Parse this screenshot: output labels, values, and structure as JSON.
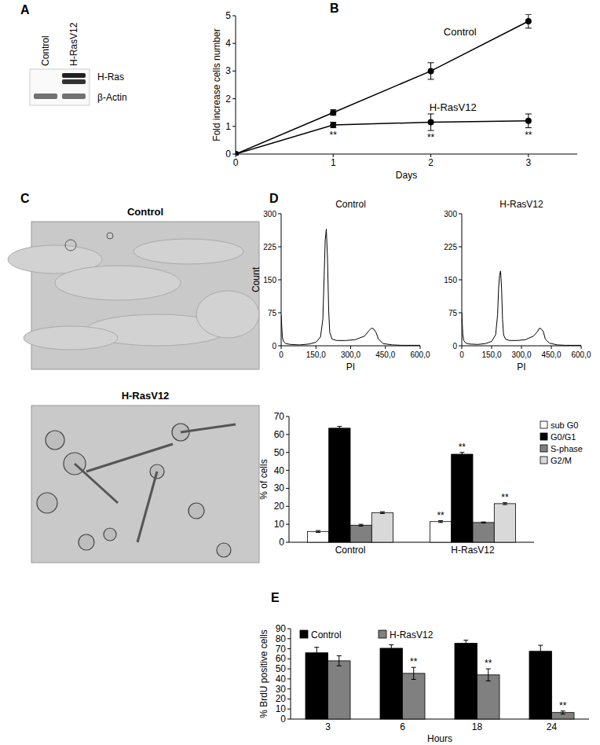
{
  "blot": {
    "panel": "A",
    "lanes": [
      "Control",
      "H-RasV12"
    ],
    "rows": [
      {
        "label": "H-Ras",
        "intensity": [
          0,
          1
        ]
      },
      {
        "label": "β-Actin",
        "intensity": [
          0.75,
          0.75
        ]
      }
    ]
  },
  "micrographs": {
    "panel": "C",
    "images": [
      {
        "title": "Control"
      },
      {
        "title": "H-RasV12"
      }
    ]
  },
  "chart_data": [
    {
      "panel": "B",
      "type": "line",
      "xlabel": "Days",
      "ylabel": "Fold increase cells number",
      "x": [
        0,
        1,
        2,
        3
      ],
      "xlim": [
        0,
        3.5
      ],
      "xticks": [
        0,
        1,
        2,
        3
      ],
      "ylim": [
        0,
        5
      ],
      "yticks": [
        0,
        1,
        2,
        3,
        4,
        5
      ],
      "grid": false,
      "series": [
        {
          "name": "Control",
          "color": "#000000",
          "marker": "circle",
          "values": [
            0,
            1.5,
            3.0,
            4.8
          ],
          "errors": [
            null,
            0.1,
            0.3,
            0.25
          ]
        },
        {
          "name": "H-RasV12",
          "color": "#000000",
          "marker": "circle",
          "values": [
            0,
            1.05,
            1.15,
            1.2
          ],
          "errors": [
            null,
            0.1,
            0.3,
            0.25
          ],
          "significance": [
            null,
            "**",
            "**",
            "**"
          ]
        }
      ]
    },
    {
      "panel": "D",
      "type": "line",
      "title": "Control",
      "xlabel": "PI",
      "ylabel": "Count",
      "x": [
        0,
        5,
        10,
        20,
        40,
        80,
        120,
        150,
        170,
        180,
        185,
        190,
        195,
        200,
        205,
        210,
        220,
        240,
        280,
        320,
        360,
        380,
        390,
        400,
        410,
        420,
        440,
        480,
        520,
        560,
        600
      ],
      "xlim": [
        0,
        600
      ],
      "xticks": [
        0,
        {
          "value": 150,
          "label": "150,0"
        },
        {
          "value": 300,
          "label": "300,0"
        },
        {
          "value": 450,
          "label": "450,0"
        },
        {
          "value": 600,
          "label": "600,0"
        }
      ],
      "ylim": [
        0,
        300
      ],
      "yticks": [
        0,
        75,
        150,
        225,
        300
      ],
      "grid": false,
      "series": [
        {
          "color": "#000000",
          "values": [
            70,
            20,
            10,
            5,
            3,
            2,
            4,
            8,
            20,
            60,
            150,
            240,
            265,
            200,
            80,
            30,
            15,
            12,
            12,
            14,
            22,
            35,
            40,
            38,
            30,
            15,
            5,
            2,
            1,
            1,
            1
          ]
        }
      ]
    },
    {
      "type": "line",
      "title": "H-RasV12",
      "x": [
        0,
        5,
        10,
        20,
        40,
        80,
        120,
        150,
        170,
        180,
        185,
        190,
        195,
        200,
        205,
        210,
        220,
        240,
        280,
        320,
        360,
        380,
        390,
        400,
        410,
        420,
        440,
        480,
        520,
        560,
        600
      ],
      "xlabel": "PI",
      "xlim": [
        0,
        600
      ],
      "xticks": [
        0,
        {
          "value": 150,
          "label": "150,0"
        },
        {
          "value": 300,
          "label": "300,0"
        },
        {
          "value": 450,
          "label": "450,0"
        },
        {
          "value": 600,
          "label": "600,0"
        }
      ],
      "ylim": [
        0,
        300
      ],
      "yticks": [
        0,
        75,
        150,
        225,
        300
      ],
      "grid": false,
      "series": [
        {
          "color": "#000000",
          "values": [
            75,
            25,
            12,
            6,
            4,
            3,
            5,
            10,
            25,
            70,
            130,
            160,
            170,
            130,
            60,
            25,
            15,
            12,
            12,
            14,
            22,
            32,
            40,
            38,
            32,
            15,
            6,
            2,
            1,
            1,
            1
          ]
        }
      ]
    },
    {
      "type": "bar",
      "ylabel": "% of cells",
      "categories": [
        "Control",
        "H-RasV12"
      ],
      "ylim": [
        0,
        70
      ],
      "yticks": [
        0,
        10,
        20,
        30,
        40,
        50,
        60,
        70
      ],
      "grid": false,
      "legend": "upper right",
      "series": [
        {
          "name": "sub G0",
          "color": "#ffffff",
          "values": [
            6,
            11.5
          ],
          "errors": [
            0.5,
            0.5
          ],
          "significance": [
            null,
            "**"
          ]
        },
        {
          "name": "G0/G1",
          "color": "#000000",
          "values": [
            63.5,
            49
          ],
          "errors": [
            1,
            1
          ],
          "significance": [
            null,
            "**"
          ]
        },
        {
          "name": "S-phase",
          "color": "#808080",
          "values": [
            9.5,
            11
          ],
          "errors": [
            0.5,
            0.3
          ]
        },
        {
          "name": "G2/M",
          "color": "#d9d9d9",
          "values": [
            16.5,
            21.5
          ],
          "errors": [
            0.5,
            0.5
          ],
          "significance": [
            null,
            "**"
          ]
        }
      ]
    },
    {
      "panel": "E",
      "type": "bar",
      "xlabel": "Hours",
      "ylabel": "% BrdU positive cells",
      "categories": [
        "3",
        "6",
        "18",
        "24"
      ],
      "ylim": [
        0,
        90
      ],
      "yticks": [
        0,
        10,
        20,
        30,
        40,
        50,
        60,
        70,
        80,
        90
      ],
      "grid": false,
      "legend": "upper left",
      "series": [
        {
          "name": "Control",
          "color": "#000000",
          "values": [
            66,
            70.5,
            75.5,
            67.5
          ],
          "errors": [
            5.5,
            3.5,
            3,
            6
          ]
        },
        {
          "name": "H-RasV12",
          "color": "#808080",
          "values": [
            58,
            45.5,
            44,
            6.5
          ],
          "errors": [
            5,
            6,
            6,
            1.5
          ],
          "significance": [
            null,
            "**",
            "**",
            "**"
          ]
        }
      ]
    }
  ]
}
